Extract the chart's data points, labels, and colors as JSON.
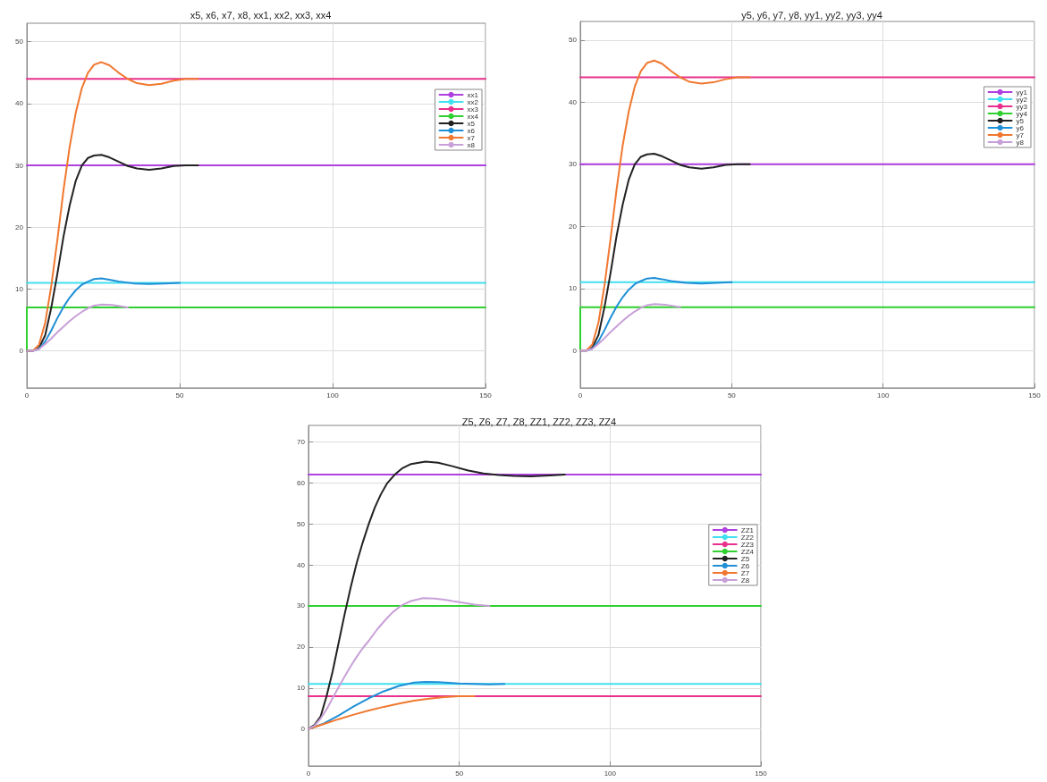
{
  "chart_data": [
    {
      "type": "line",
      "title": "x5, x6, x7, x8, xx1, xx2, xx3, xx4",
      "xlim": [
        0,
        150
      ],
      "xticks": [
        0,
        50,
        100,
        150
      ],
      "ylim": [
        -6,
        53
      ],
      "yticks": [
        0,
        10,
        20,
        30,
        40,
        50
      ],
      "grid": true,
      "legend": "right",
      "marker": "none",
      "line_style": "solid",
      "series": [
        {
          "name": "xx1",
          "color": "#b040e0",
          "x": [
            0,
            150
          ],
          "values": [
            30,
            30
          ]
        },
        {
          "name": "xx2",
          "color": "#40e0f0",
          "x": [
            0,
            150
          ],
          "values": [
            11,
            11
          ]
        },
        {
          "name": "xx3",
          "color": "#e8308c",
          "x": [
            0,
            150
          ],
          "values": [
            44,
            44
          ]
        },
        {
          "name": "xx4",
          "color": "#30d030",
          "x": [
            0,
            0,
            150
          ],
          "values": [
            0,
            7,
            7
          ]
        },
        {
          "name": "x5",
          "color": "#222222",
          "x": [
            0,
            2,
            4,
            6,
            8,
            10,
            12,
            14,
            16,
            18,
            20,
            22,
            24.4,
            27,
            30,
            33,
            36,
            40,
            44,
            48,
            52,
            56
          ],
          "values": [
            0,
            0,
            0.5,
            2.5,
            7,
            12.5,
            18.5,
            23.5,
            27.5,
            30,
            31.2,
            31.6,
            31.7,
            31.3,
            30.6,
            29.9,
            29.5,
            29.3,
            29.5,
            29.9,
            30,
            30
          ]
        },
        {
          "name": "x6",
          "color": "#1f8fd6",
          "x": [
            0,
            2,
            4,
            6,
            8,
            10,
            12,
            14,
            16,
            18,
            20,
            22,
            24.4,
            27,
            30,
            35,
            40,
            45,
            50
          ],
          "values": [
            0,
            0,
            0.3,
            1.5,
            3.3,
            5.3,
            7.1,
            8.6,
            9.8,
            10.7,
            11.2,
            11.6,
            11.7,
            11.5,
            11.2,
            10.9,
            10.8,
            10.9,
            11
          ]
        },
        {
          "name": "x7",
          "color": "#f07830",
          "x": [
            0,
            2,
            4,
            6,
            8,
            10,
            12,
            14,
            16,
            18,
            20,
            22,
            24.4,
            27,
            30,
            33,
            36,
            40,
            44,
            48,
            52,
            56
          ],
          "values": [
            0,
            0,
            1,
            4.5,
            10.5,
            18,
            26,
            33,
            38.5,
            42.5,
            45,
            46.3,
            46.7,
            46.2,
            45,
            44,
            43.3,
            43,
            43.2,
            43.7,
            44,
            44
          ]
        },
        {
          "name": "x8",
          "color": "#c8a0d8",
          "x": [
            0,
            2,
            4,
            6,
            8,
            10,
            12,
            14,
            16,
            18,
            20,
            22,
            24.6,
            28,
            33
          ],
          "values": [
            0,
            0,
            0.3,
            1.1,
            2,
            3,
            3.9,
            4.8,
            5.6,
            6.3,
            6.9,
            7.3,
            7.5,
            7.4,
            7
          ]
        }
      ]
    },
    {
      "type": "line",
      "title": "y5, y6, y7, y8, yy1, yy2, yy3, yy4",
      "xlim": [
        0,
        150
      ],
      "xticks": [
        0,
        50,
        100,
        150
      ],
      "ylim": [
        -6,
        53
      ],
      "yticks": [
        0,
        10,
        20,
        30,
        40,
        50
      ],
      "grid": true,
      "legend": "right",
      "marker": "none",
      "line_style": "solid",
      "series": [
        {
          "name": "yy1",
          "color": "#b040e0",
          "x": [
            0,
            150
          ],
          "values": [
            30,
            30
          ]
        },
        {
          "name": "yy2",
          "color": "#40e0f0",
          "x": [
            0,
            150
          ],
          "values": [
            11,
            11
          ]
        },
        {
          "name": "yy3",
          "color": "#e8308c",
          "x": [
            0,
            150
          ],
          "values": [
            44,
            44
          ]
        },
        {
          "name": "yy4",
          "color": "#30d030",
          "x": [
            0,
            0,
            150
          ],
          "values": [
            0,
            7,
            7
          ]
        },
        {
          "name": "y5",
          "color": "#222222",
          "x": [
            0,
            2,
            4,
            6,
            8,
            10,
            12,
            14,
            16,
            18,
            20,
            22,
            24.4,
            27,
            30,
            33,
            36,
            40,
            44,
            48,
            52,
            56
          ],
          "values": [
            0,
            0,
            0.5,
            2.5,
            7,
            12.5,
            18.5,
            23.5,
            27.5,
            30,
            31.2,
            31.6,
            31.7,
            31.3,
            30.6,
            29.9,
            29.5,
            29.3,
            29.5,
            29.9,
            30,
            30
          ]
        },
        {
          "name": "y6",
          "color": "#1f8fd6",
          "x": [
            0,
            2,
            4,
            6,
            8,
            10,
            12,
            14,
            16,
            18,
            20,
            22,
            24.4,
            27,
            30,
            35,
            40,
            45,
            50
          ],
          "values": [
            0,
            0,
            0.3,
            1.5,
            3.3,
            5.3,
            7.1,
            8.6,
            9.8,
            10.7,
            11.2,
            11.6,
            11.7,
            11.5,
            11.2,
            10.9,
            10.8,
            10.9,
            11
          ]
        },
        {
          "name": "y7",
          "color": "#f07830",
          "x": [
            0,
            2,
            4,
            6,
            8,
            10,
            12,
            14,
            16,
            18,
            20,
            22,
            24.4,
            27,
            30,
            33,
            36,
            40,
            44,
            48,
            52,
            56
          ],
          "values": [
            0,
            0,
            1,
            4.5,
            10.5,
            18,
            26,
            33,
            38.5,
            42.5,
            45,
            46.3,
            46.7,
            46.2,
            45,
            44,
            43.3,
            43,
            43.2,
            43.7,
            44,
            44
          ]
        },
        {
          "name": "y8",
          "color": "#c8a0d8",
          "x": [
            0,
            2,
            4,
            6,
            8,
            10,
            12,
            14,
            16,
            18,
            20,
            22,
            24.6,
            28,
            33
          ],
          "values": [
            0,
            0,
            0.3,
            1.1,
            2,
            3,
            3.9,
            4.8,
            5.6,
            6.3,
            6.9,
            7.3,
            7.5,
            7.4,
            7
          ]
        }
      ]
    },
    {
      "type": "line",
      "title": "Z5, Z6, Z7, Z8, ZZ1, ZZ2, ZZ3, ZZ4",
      "xlim": [
        0,
        150
      ],
      "xticks": [
        0,
        50,
        100,
        150
      ],
      "ylim": [
        -9,
        74
      ],
      "yticks": [
        0,
        10,
        20,
        30,
        40,
        50,
        60,
        70
      ],
      "grid": true,
      "legend": "right",
      "marker": "none",
      "line_style": "solid",
      "series": [
        {
          "name": "ZZ1",
          "color": "#b040e0",
          "x": [
            0,
            150
          ],
          "values": [
            62,
            62
          ]
        },
        {
          "name": "ZZ2",
          "color": "#40e0f0",
          "x": [
            0,
            150
          ],
          "values": [
            11,
            11
          ]
        },
        {
          "name": "ZZ3",
          "color": "#e8308c",
          "x": [
            0,
            150
          ],
          "values": [
            8,
            8
          ]
        },
        {
          "name": "ZZ4",
          "color": "#30d030",
          "x": [
            0,
            150
          ],
          "values": [
            30,
            30
          ]
        },
        {
          "name": "Z5",
          "color": "#222222",
          "x": [
            0,
            2,
            4,
            6,
            8,
            10,
            12,
            14,
            16,
            18,
            20,
            22,
            24,
            26,
            28.6,
            31,
            34,
            38.8,
            43,
            48,
            53,
            58,
            63,
            68,
            73.6,
            80,
            85
          ],
          "values": [
            0,
            1,
            3,
            8,
            14,
            21,
            28,
            34.5,
            40.5,
            45.5,
            50,
            54,
            57.2,
            59.8,
            62,
            63.5,
            64.6,
            65.2,
            64.9,
            64,
            63,
            62.3,
            61.9,
            61.7,
            61.6,
            61.8,
            62
          ]
        },
        {
          "name": "Z6",
          "color": "#1f8fd6",
          "x": [
            0,
            5,
            10,
            15,
            20,
            25,
            30,
            35,
            38.8,
            43,
            50,
            55,
            60,
            65
          ],
          "values": [
            0,
            1.3,
            3.3,
            5.5,
            7.5,
            9.2,
            10.5,
            11.3,
            11.5,
            11.4,
            11.1,
            11,
            10.9,
            11
          ]
        },
        {
          "name": "Z7",
          "color": "#f07830",
          "x": [
            0,
            5,
            10,
            15,
            20,
            25,
            30,
            35,
            40,
            45,
            50,
            55
          ],
          "values": [
            0,
            1.2,
            2.4,
            3.5,
            4.5,
            5.4,
            6.2,
            6.9,
            7.4,
            7.8,
            8,
            8
          ]
        },
        {
          "name": "Z8",
          "color": "#c8a0d8",
          "x": [
            0,
            2,
            4,
            6,
            8,
            10,
            12,
            14,
            16,
            18,
            20,
            23,
            26,
            28,
            31,
            34,
            38,
            42,
            46,
            50,
            55,
            60
          ],
          "values": [
            0,
            0.8,
            2.5,
            4.8,
            7.5,
            10.2,
            12.8,
            15.3,
            17.6,
            19.7,
            21.5,
            24.5,
            27,
            28.5,
            30.2,
            31.2,
            31.9,
            31.8,
            31.4,
            30.9,
            30.3,
            30
          ]
        }
      ]
    }
  ]
}
